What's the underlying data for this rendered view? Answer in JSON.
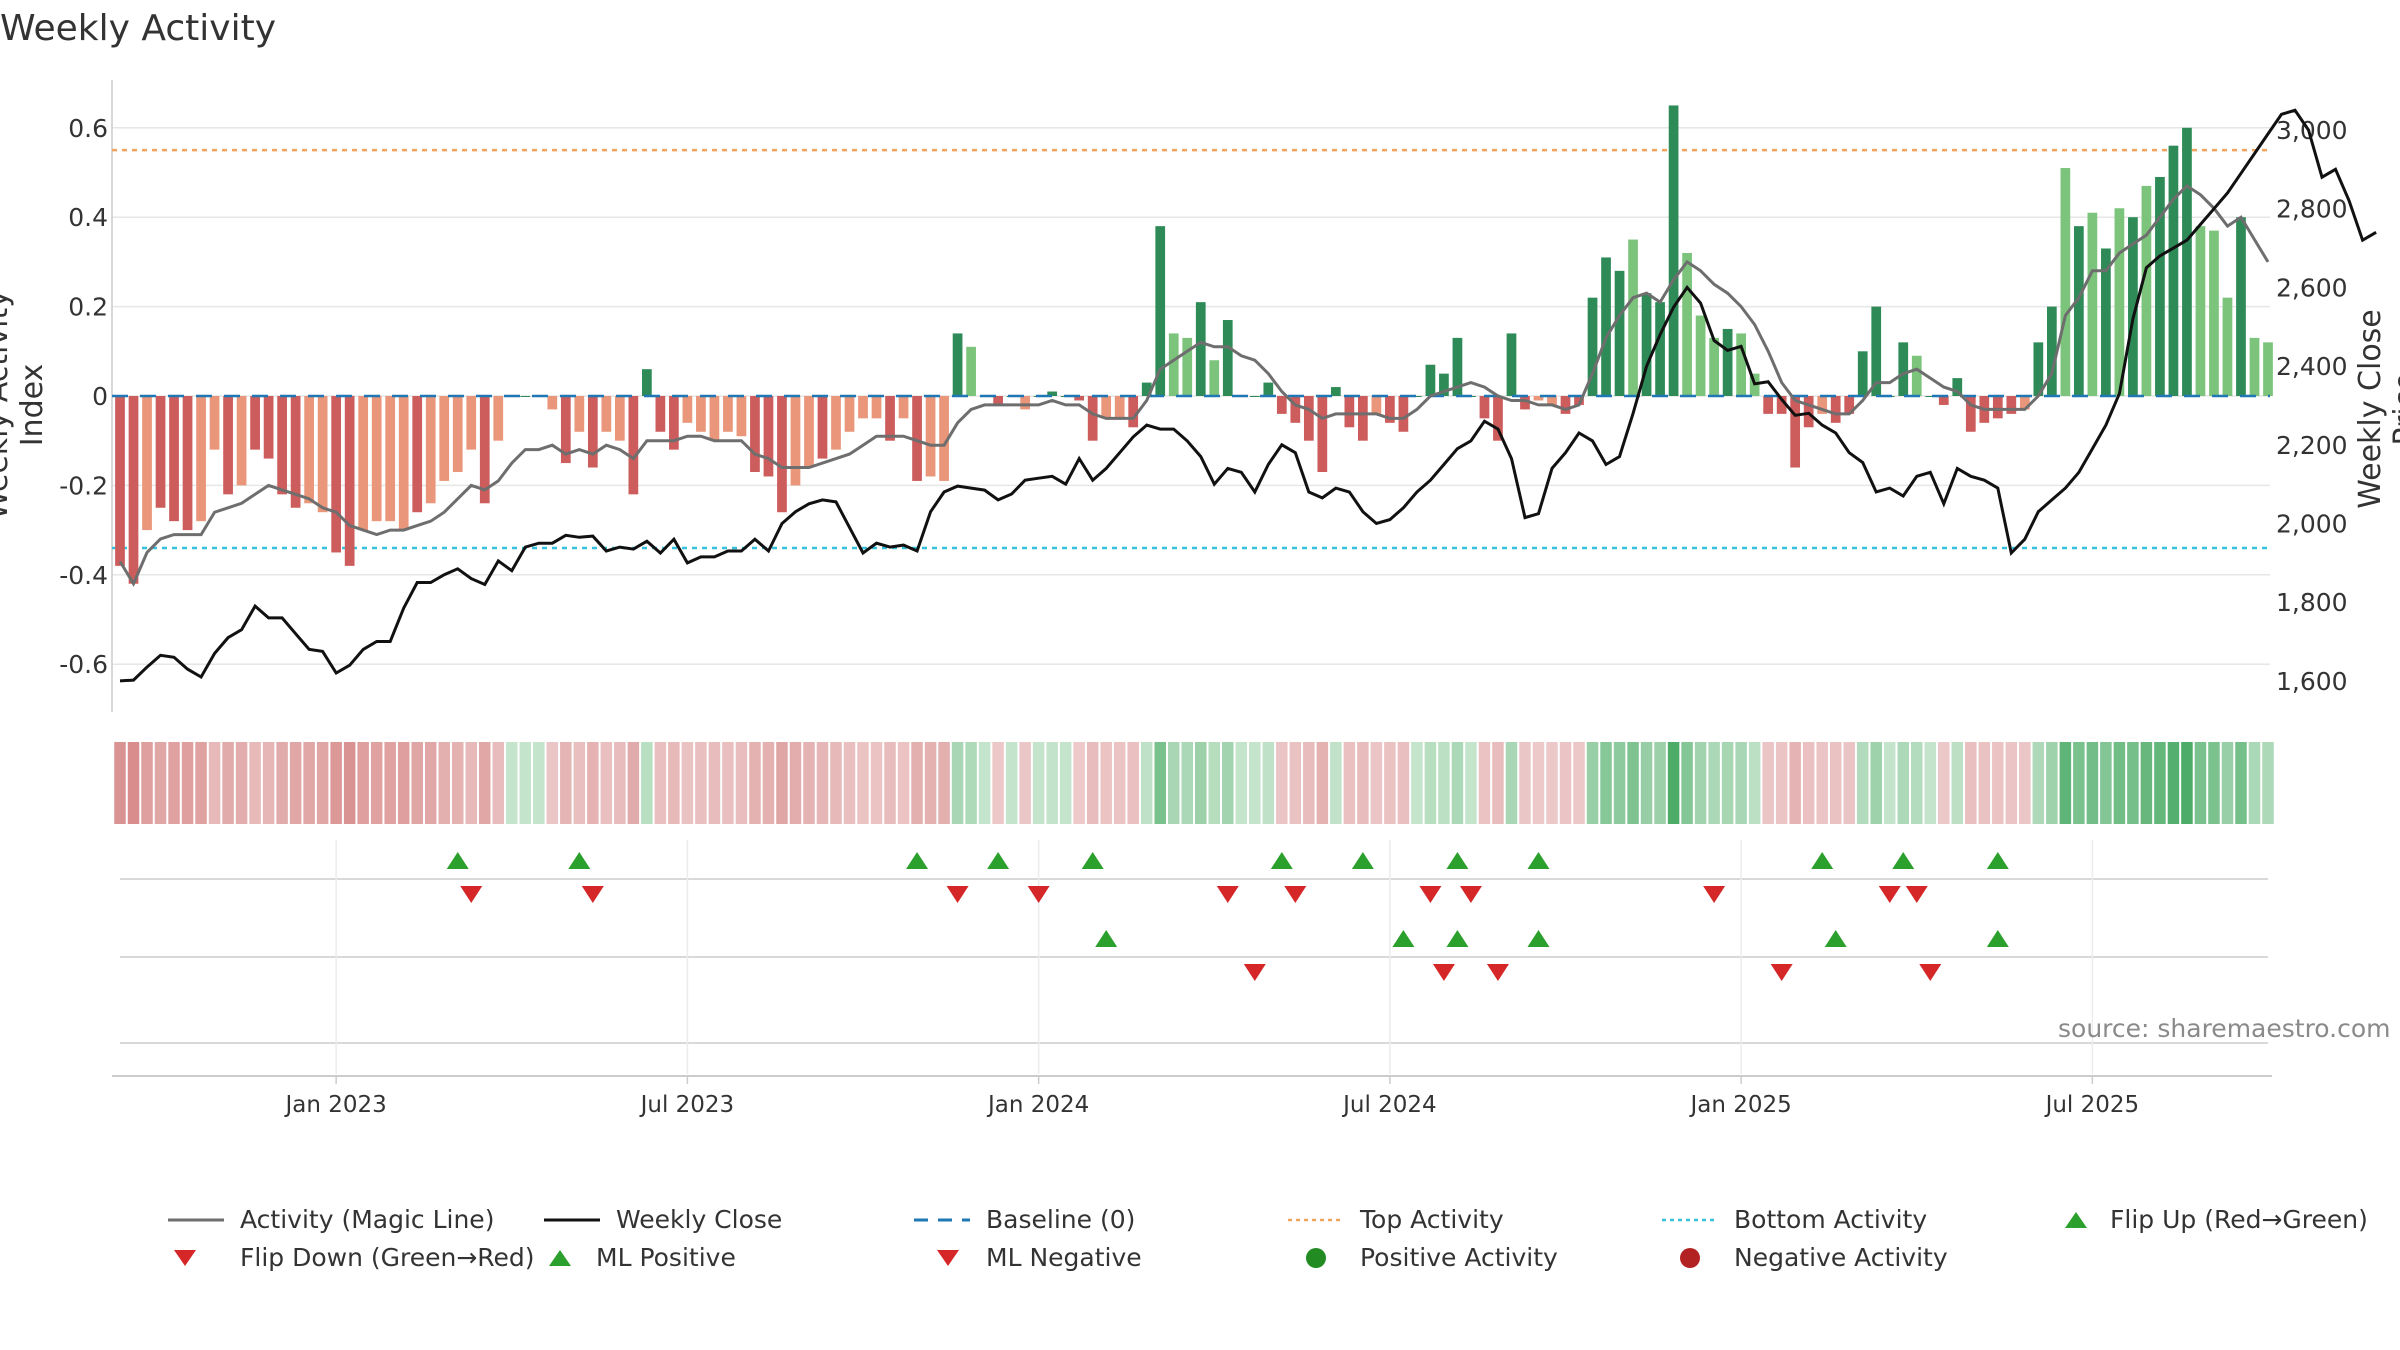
{
  "title": "Weekly Activity",
  "source": "source: sharemaestro.com",
  "chart_data": {
    "type": "bar",
    "title": "Weekly Activity",
    "ylabel_left": "Weekly Activity Index",
    "ylabel_right": "Weekly Close Price",
    "ylim_left": [
      -0.7,
      0.7
    ],
    "ylim_right": [
      1530,
      3080
    ],
    "yticks_left": [
      0.6,
      0.4,
      0.2,
      0,
      -0.2,
      -0.4,
      -0.6
    ],
    "ytick_labels_left": [
      "0.6",
      "0.4",
      "0.2",
      "0",
      "-0.2",
      "-0.4",
      "-0.6"
    ],
    "yticks_right": [
      3000,
      2800,
      2600,
      2400,
      2200,
      2000,
      1800,
      1600
    ],
    "ytick_labels_right": [
      "3,000",
      "2,800",
      "2,600",
      "2,400",
      "2,200",
      "2,000",
      "1,800",
      "1,600"
    ],
    "xticks": [
      {
        "week": 16,
        "label": "Jan 2023"
      },
      {
        "week": 42,
        "label": "Jul 2023"
      },
      {
        "week": 68,
        "label": "Jan 2024"
      },
      {
        "week": 94,
        "label": "Jul 2024"
      },
      {
        "week": 120,
        "label": "Jan 2025"
      },
      {
        "week": 146,
        "label": "Jul 2025"
      }
    ],
    "top_activity": 0.55,
    "bottom_activity": -0.34,
    "baseline": 0,
    "colors": {
      "strong_pos": "#2e8b57",
      "weak_pos": "#7cc47c",
      "strong_neg": "#cd5c5c",
      "weak_neg": "#e9967a",
      "magic_line": "#6e6e6e",
      "close_line": "#111111",
      "baseline": "#1f77b4",
      "top_line": "#f0a35e",
      "bottom_line": "#35c0dc",
      "marker_up": "#2ca02c",
      "marker_down": "#d62728",
      "positive_dot": "#228b22",
      "negative_dot": "#b22222",
      "grid": "#e6e6e6"
    },
    "activity": [
      -0.38,
      -0.42,
      -0.3,
      -0.25,
      -0.28,
      -0.3,
      -0.28,
      -0.12,
      -0.22,
      -0.2,
      -0.12,
      -0.14,
      -0.22,
      -0.25,
      -0.24,
      -0.26,
      -0.35,
      -0.38,
      -0.3,
      -0.28,
      -0.28,
      -0.3,
      -0.26,
      -0.24,
      -0.19,
      -0.17,
      -0.12,
      -0.24,
      -0.1,
      0,
      0,
      0,
      -0.03,
      -0.15,
      -0.08,
      -0.16,
      -0.08,
      -0.1,
      -0.22,
      0.06,
      -0.08,
      -0.12,
      -0.06,
      -0.08,
      -0.1,
      -0.08,
      -0.09,
      -0.17,
      -0.18,
      -0.26,
      -0.2,
      -0.16,
      -0.14,
      -0.12,
      -0.08,
      -0.05,
      -0.05,
      -0.1,
      -0.05,
      -0.19,
      -0.18,
      -0.19,
      0.14,
      0.11,
      0,
      -0.02,
      0,
      -0.03,
      0,
      0.01,
      0,
      -0.01,
      -0.1,
      -0.05,
      -0.05,
      -0.07,
      0.03,
      0.38,
      0.14,
      0.13,
      0.21,
      0.08,
      0.17,
      0,
      0,
      0.03,
      -0.04,
      -0.06,
      -0.1,
      -0.17,
      0.02,
      -0.07,
      -0.1,
      -0.04,
      -0.06,
      -0.08,
      0,
      0.07,
      0.05,
      0.13,
      0,
      -0.05,
      -0.1,
      0.14,
      -0.03,
      -0.01,
      -0.02,
      -0.04,
      -0.02,
      0.22,
      0.31,
      0.28,
      0.35,
      0.23,
      0.21,
      0.65,
      0.32,
      0.18,
      0.13,
      0.15,
      0.14,
      0.05,
      -0.04,
      -0.04,
      -0.16,
      -0.07,
      -0.04,
      -0.06,
      -0.04,
      0.1,
      0.2,
      0,
      0.12,
      0.09,
      0,
      -0.02,
      0.04,
      -0.08,
      -0.06,
      -0.05,
      -0.04,
      -0.03,
      0.12,
      0.2,
      0.51,
      0.38,
      0.41,
      0.33,
      0.42,
      0.4,
      0.47,
      0.49,
      0.56,
      0.6,
      0.38,
      0.37,
      0.22,
      0.4,
      0.13,
      0.12
    ],
    "strength": [
      1,
      1,
      0,
      1,
      1,
      1,
      0,
      0,
      1,
      0,
      1,
      1,
      1,
      1,
      0,
      0,
      1,
      1,
      0,
      0,
      0,
      0,
      1,
      0,
      0,
      0,
      0,
      1,
      0,
      1,
      1,
      1,
      0,
      1,
      0,
      1,
      0,
      0,
      1,
      1,
      1,
      1,
      0,
      0,
      0,
      0,
      0,
      1,
      1,
      1,
      0,
      0,
      1,
      0,
      0,
      0,
      0,
      1,
      0,
      1,
      0,
      0,
      1,
      0,
      1,
      1,
      1,
      0,
      1,
      1,
      1,
      1,
      1,
      0,
      0,
      1,
      1,
      1,
      0,
      0,
      1,
      0,
      1,
      1,
      1,
      1,
      1,
      1,
      1,
      1,
      1,
      1,
      1,
      0,
      1,
      1,
      1,
      1,
      1,
      1,
      1,
      1,
      1,
      1,
      1,
      0,
      0,
      1,
      1,
      1,
      1,
      1,
      0,
      1,
      1,
      1,
      0,
      0,
      0,
      1,
      0,
      0,
      1,
      1,
      1,
      1,
      0,
      1,
      1,
      1,
      1,
      1,
      1,
      0,
      1,
      1,
      1,
      1,
      1,
      1,
      1,
      0,
      1,
      1,
      0,
      1,
      0,
      1,
      0,
      1,
      0,
      1,
      1,
      1,
      0,
      0,
      0,
      1,
      0,
      0
    ],
    "magic_line": [
      -0.37,
      -0.42,
      -0.35,
      -0.32,
      -0.31,
      -0.31,
      -0.31,
      -0.26,
      -0.25,
      -0.24,
      -0.22,
      -0.2,
      -0.21,
      -0.22,
      -0.23,
      -0.25,
      -0.26,
      -0.29,
      -0.3,
      -0.31,
      -0.3,
      -0.3,
      -0.29,
      -0.28,
      -0.26,
      -0.23,
      -0.2,
      -0.21,
      -0.19,
      -0.15,
      -0.12,
      -0.12,
      -0.11,
      -0.13,
      -0.12,
      -0.13,
      -0.11,
      -0.12,
      -0.14,
      -0.1,
      -0.1,
      -0.1,
      -0.09,
      -0.09,
      -0.1,
      -0.1,
      -0.1,
      -0.13,
      -0.14,
      -0.16,
      -0.16,
      -0.16,
      -0.15,
      -0.14,
      -0.13,
      -0.11,
      -0.09,
      -0.09,
      -0.09,
      -0.1,
      -0.11,
      -0.11,
      -0.06,
      -0.03,
      -0.02,
      -0.02,
      -0.02,
      -0.02,
      -0.02,
      -0.01,
      -0.02,
      -0.02,
      -0.04,
      -0.05,
      -0.05,
      -0.05,
      -0.01,
      0.06,
      0.08,
      0.1,
      0.12,
      0.11,
      0.11,
      0.09,
      0.08,
      0.05,
      0.01,
      -0.02,
      -0.03,
      -0.05,
      -0.04,
      -0.04,
      -0.04,
      -0.04,
      -0.05,
      -0.05,
      -0.03,
      0,
      0.01,
      0.02,
      0.03,
      0.02,
      0,
      -0.01,
      -0.01,
      -0.02,
      -0.02,
      -0.03,
      -0.02,
      0.05,
      0.13,
      0.18,
      0.22,
      0.23,
      0.21,
      0.26,
      0.3,
      0.28,
      0.25,
      0.23,
      0.2,
      0.16,
      0.1,
      0.03,
      -0.01,
      -0.02,
      -0.03,
      -0.04,
      -0.04,
      -0.01,
      0.03,
      0.03,
      0.05,
      0.06,
      0.04,
      0.02,
      0.01,
      -0.02,
      -0.03,
      -0.03,
      -0.03,
      -0.03,
      0,
      0.05,
      0.18,
      0.22,
      0.28,
      0.28,
      0.32,
      0.34,
      0.36,
      0.4,
      0.44,
      0.47,
      0.45,
      0.42,
      0.38,
      0.4,
      0.35,
      0.3
    ],
    "weekly_close": [
      1600,
      1602,
      1635,
      1665,
      1660,
      1630,
      1610,
      1670,
      1710,
      1730,
      1790,
      1760,
      1760,
      1720,
      1680,
      1675,
      1620,
      1640,
      1680,
      1700,
      1700,
      1785,
      1850,
      1850,
      1870,
      1885,
      1860,
      1845,
      1905,
      1880,
      1940,
      1950,
      1950,
      1970,
      1965,
      1968,
      1930,
      1940,
      1935,
      1955,
      1925,
      1960,
      1900,
      1915,
      1915,
      1930,
      1930,
      1960,
      1930,
      2000,
      2030,
      2050,
      2060,
      2055,
      1990,
      1925,
      1950,
      1940,
      1945,
      1930,
      2030,
      2080,
      2095,
      2090,
      2085,
      2060,
      2075,
      2110,
      2115,
      2120,
      2100,
      2165,
      2110,
      2140,
      2180,
      2220,
      2250,
      2240,
      2240,
      2210,
      2170,
      2100,
      2140,
      2130,
      2080,
      2150,
      2200,
      2180,
      2080,
      2065,
      2090,
      2080,
      2030,
      2000,
      2010,
      2040,
      2080,
      2110,
      2150,
      2190,
      2210,
      2260,
      2240,
      2165,
      2015,
      2025,
      2140,
      2180,
      2230,
      2210,
      2150,
      2170,
      2280,
      2400,
      2480,
      2550,
      2600,
      2560,
      2465,
      2440,
      2450,
      2355,
      2360,
      2315,
      2275,
      2280,
      2250,
      2230,
      2180,
      2155,
      2080,
      2090,
      2070,
      2120,
      2130,
      2050,
      2140,
      2120,
      2110,
      2090,
      1925,
      1960,
      2030,
      2060,
      2090,
      2130,
      2190,
      2250,
      2330,
      2520,
      2650,
      2680,
      2700,
      2720,
      2760,
      2800,
      2840,
      2890,
      2940,
      2990,
      3040,
      3050,
      3000,
      2880,
      2900,
      2820,
      2720,
      2740
    ],
    "flip_up_weeks": [
      25,
      34,
      59,
      65,
      72,
      86,
      92,
      99,
      105,
      126,
      132,
      139
    ],
    "flip_down_weeks": [
      26,
      35,
      62,
      68,
      82,
      87,
      97,
      100,
      118,
      131,
      133
    ],
    "ml_positive_weeks": [
      73,
      95,
      99,
      105,
      127,
      139
    ],
    "ml_negative_weeks": [
      84,
      98,
      102,
      123,
      134
    ],
    "legend": [
      {
        "label": "Activity (Magic Line)",
        "icon": "magic-line"
      },
      {
        "label": "Weekly Close",
        "icon": "close-line"
      },
      {
        "label": "Baseline (0)",
        "icon": "baseline-dash"
      },
      {
        "label": "Top Activity",
        "icon": "top-dotted"
      },
      {
        "label": "Bottom Activity",
        "icon": "bottom-dotted"
      },
      {
        "label": "Flip Up (Red→Green)",
        "icon": "triangle-up"
      },
      {
        "label": "Flip Down (Green→Red)",
        "icon": "triangle-down"
      },
      {
        "label": "ML Positive",
        "icon": "triangle-up"
      },
      {
        "label": "ML Negative",
        "icon": "triangle-down"
      },
      {
        "label": "Positive Activity",
        "icon": "dot-green"
      },
      {
        "label": "Negative Activity",
        "icon": "dot-red"
      }
    ]
  }
}
